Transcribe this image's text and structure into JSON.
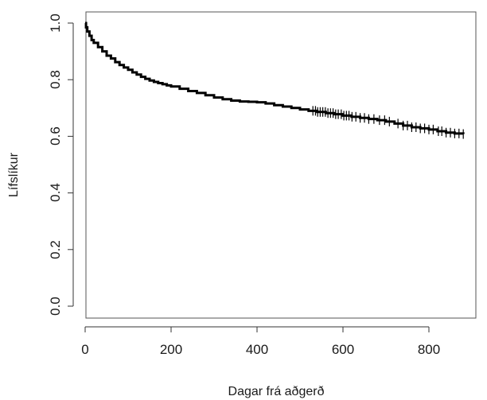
{
  "chart_data": {
    "type": "line",
    "title": "",
    "xlabel": "Dagar frá aðgerð",
    "ylabel": "Lífslíkur",
    "xlim": [
      0,
      900
    ],
    "ylim": [
      0,
      1.0
    ],
    "x_ticks": [
      0,
      200,
      400,
      600,
      800
    ],
    "x_tick_labels": [
      "0",
      "200",
      "400",
      "600",
      "800"
    ],
    "y_ticks": [
      0.0,
      0.2,
      0.4,
      0.6,
      0.8,
      1.0
    ],
    "y_tick_labels": [
      "0.0",
      "0.2",
      "0.4",
      "0.6",
      "0.8",
      "1.0"
    ],
    "grid": false,
    "line_style": "step",
    "line_color": "#000000",
    "series": [
      {
        "x": [
          0,
          2,
          5,
          10,
          15,
          20,
          30,
          40,
          50,
          60,
          70,
          80,
          90,
          100,
          110,
          120,
          130,
          140,
          150,
          160,
          170,
          180,
          190,
          200,
          220,
          240,
          260,
          280,
          300,
          320,
          340,
          360,
          380,
          400,
          420,
          440,
          460,
          480,
          500,
          520,
          540,
          560,
          580,
          600,
          620,
          640,
          660,
          680,
          700,
          720,
          740,
          760,
          780,
          800,
          820,
          840,
          860,
          880
        ],
        "y": [
          1.0,
          0.985,
          0.97,
          0.955,
          0.94,
          0.93,
          0.915,
          0.9,
          0.885,
          0.875,
          0.862,
          0.852,
          0.843,
          0.835,
          0.826,
          0.818,
          0.81,
          0.803,
          0.797,
          0.792,
          0.788,
          0.784,
          0.78,
          0.776,
          0.768,
          0.76,
          0.753,
          0.745,
          0.737,
          0.731,
          0.726,
          0.723,
          0.722,
          0.72,
          0.716,
          0.71,
          0.705,
          0.7,
          0.695,
          0.69,
          0.686,
          0.682,
          0.678,
          0.673,
          0.669,
          0.665,
          0.661,
          0.657,
          0.652,
          0.645,
          0.638,
          0.632,
          0.628,
          0.624,
          0.618,
          0.613,
          0.61,
          0.608
        ]
      }
    ],
    "censor_marks_x": [
      530,
      536,
      541,
      547,
      553,
      559,
      565,
      571,
      577,
      583,
      589,
      596,
      602,
      608,
      614,
      621,
      630,
      640,
      650,
      660,
      672,
      685,
      697,
      708,
      728,
      740,
      750,
      760,
      770,
      780,
      790,
      800,
      810,
      822,
      830,
      840,
      850,
      860,
      870,
      880
    ]
  }
}
